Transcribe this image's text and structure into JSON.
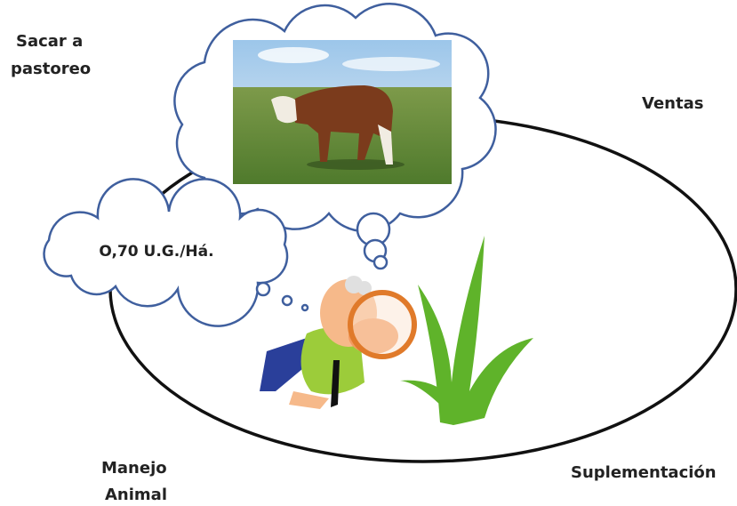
{
  "labels": [
    {
      "lines": [
        "Sacar a",
        "pastoreo"
      ]
    },
    {
      "lines": [
        "Ventas"
      ]
    },
    {
      "lines": [
        "Manejo",
        "Animal"
      ]
    },
    {
      "lines": [
        "Suplementación"
      ]
    }
  ],
  "cloud_text": "O,70 U.G./Há."
}
